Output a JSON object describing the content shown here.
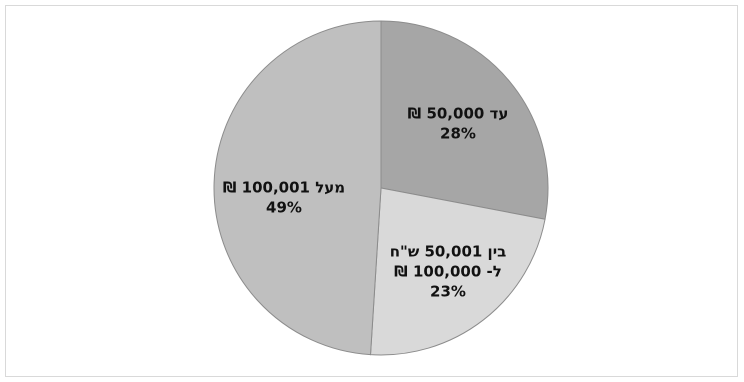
{
  "chart_data": {
    "type": "pie",
    "slices": [
      {
        "label_lines": [
          "עד 50,000 ₪"
        ],
        "percent_label": "28%",
        "value": 28,
        "color": "#a6a6a6"
      },
      {
        "label_lines": [
          "בין 50,001 ש\"ח",
          "ל- 100,000 ₪"
        ],
        "percent_label": "23%",
        "value": 23,
        "color": "#d9d9d9"
      },
      {
        "label_lines": [
          "מעל 100,001 ₪"
        ],
        "percent_label": "49%",
        "value": 49,
        "color": "#bfbfbf"
      }
    ],
    "start": "12 o'clock",
    "direction": "clockwise",
    "legend": "none"
  }
}
